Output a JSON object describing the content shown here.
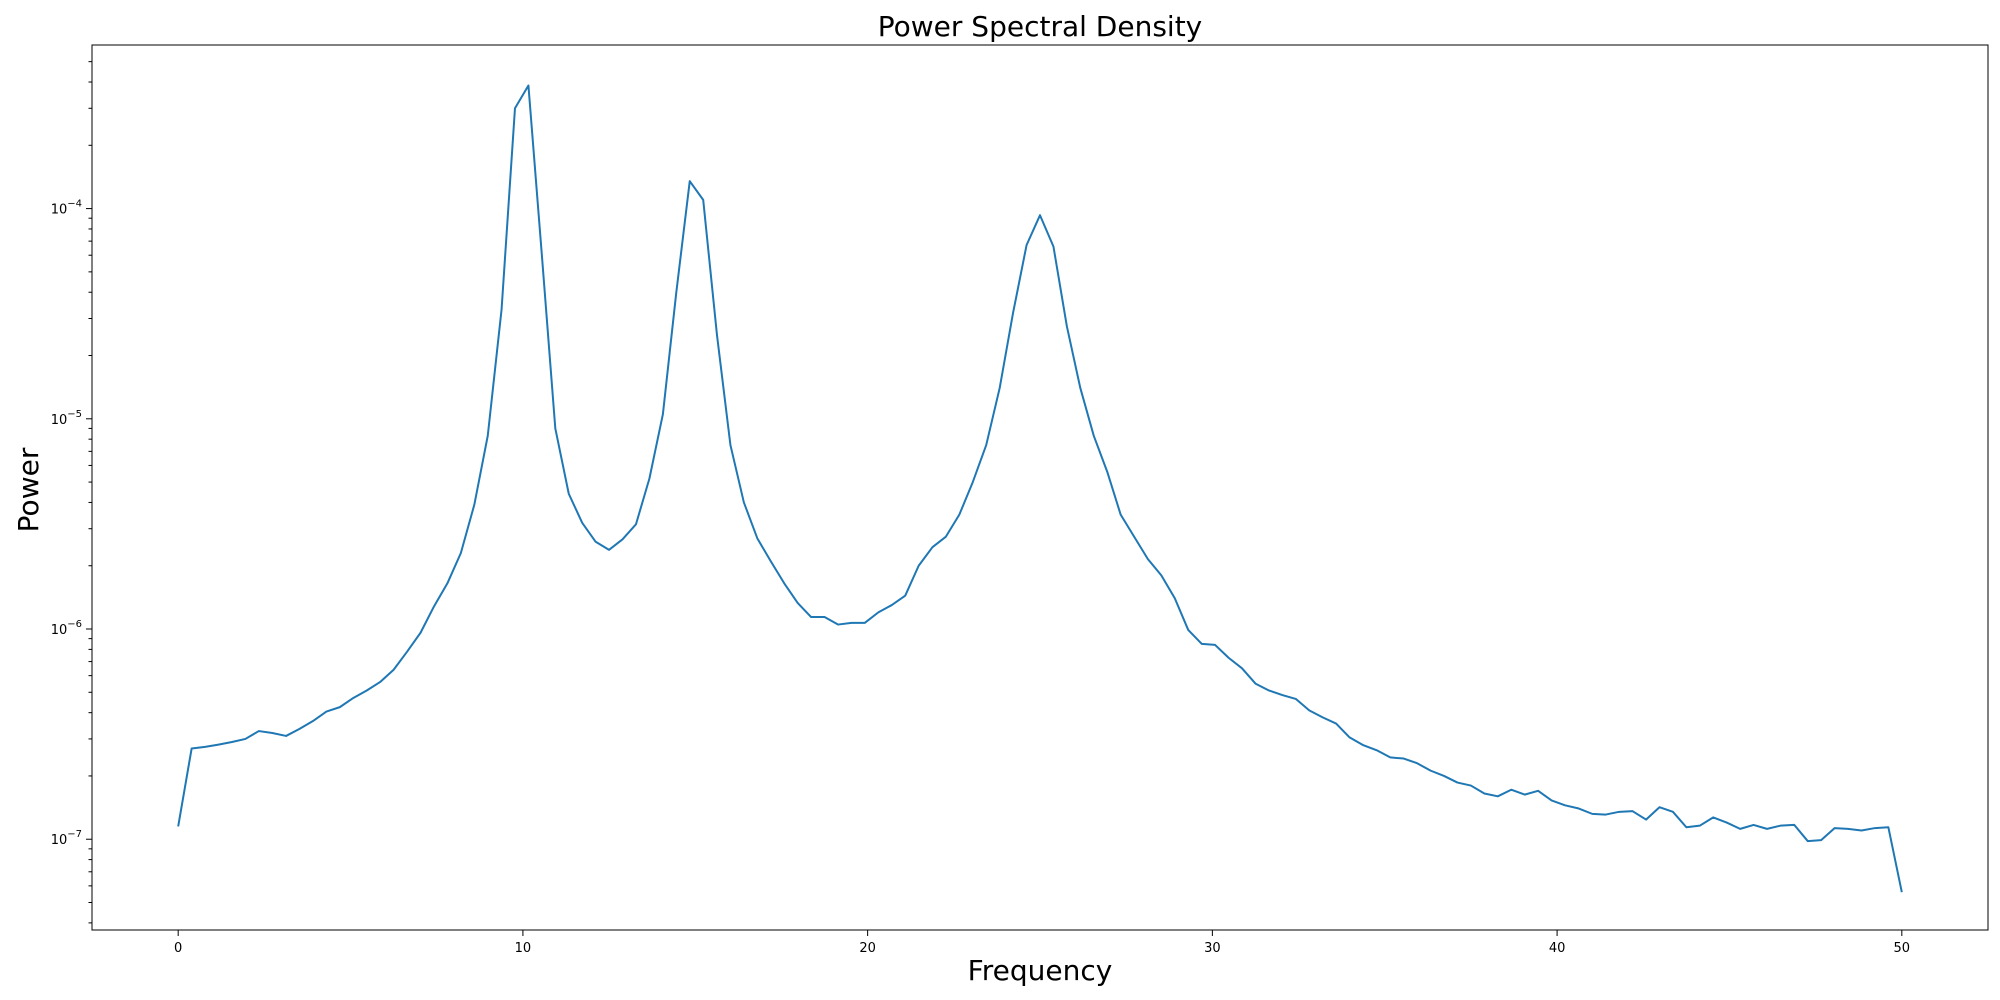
{
  "chart_data": {
    "type": "line",
    "title": "Power Spectral Density",
    "xlabel": "Frequency",
    "ylabel": "Power",
    "yscale": "log",
    "xlim": [
      -2.5,
      52.5
    ],
    "ylim": [
      3.7e-08,
      0.0006
    ],
    "grid": false,
    "line_color": "#1f77b4",
    "x_ticks": [
      0,
      10,
      20,
      30,
      40,
      50
    ],
    "x_tick_labels": [
      "0",
      "10",
      "20",
      "30",
      "40",
      "50"
    ],
    "y_major_ticks": [
      {
        "value": 1e-07,
        "base": "10",
        "exponent": "−7"
      },
      {
        "value": 1e-06,
        "base": "10",
        "exponent": "−6"
      },
      {
        "value": 1e-05,
        "base": "10",
        "exponent": "−5"
      },
      {
        "value": 0.0001,
        "base": "10",
        "exponent": "−4"
      }
    ],
    "series": [
      {
        "x": [
          0,
          0.39,
          0.78,
          1.17,
          1.56,
          1.95,
          2.34,
          2.73,
          3.13,
          3.52,
          3.91,
          4.3,
          4.69,
          5.08,
          5.47,
          5.86,
          6.25,
          6.64,
          7.03,
          7.42,
          7.81,
          8.2,
          8.59,
          8.98,
          9.38,
          9.77,
          10.16,
          10.55,
          10.94,
          11.33,
          11.72,
          12.11,
          12.5,
          12.89,
          13.28,
          13.67,
          14.06,
          14.45,
          14.84,
          15.23,
          15.63,
          16.02,
          16.41,
          16.8,
          17.19,
          17.58,
          17.97,
          18.36,
          18.75,
          19.14,
          19.53,
          19.92,
          20.31,
          20.7,
          21.09,
          21.48,
          21.88,
          22.27,
          22.66,
          23.05,
          23.44,
          23.83,
          24.22,
          24.61,
          25,
          25.39,
          25.78,
          26.17,
          26.56,
          26.95,
          27.34,
          27.73,
          28.13,
          28.52,
          28.91,
          29.3,
          29.69,
          30.08,
          30.47,
          30.86,
          31.25,
          31.64,
          32.03,
          32.42,
          32.81,
          33.2,
          33.59,
          33.98,
          34.38,
          34.77,
          35.16,
          35.55,
          35.94,
          36.33,
          36.72,
          37.11,
          37.5,
          37.89,
          38.28,
          38.67,
          39.06,
          39.45,
          39.84,
          40.23,
          40.63,
          41.02,
          41.41,
          41.8,
          42.19,
          42.58,
          42.97,
          43.36,
          43.75,
          44.14,
          44.53,
          44.92,
          45.31,
          45.7,
          46.09,
          46.48,
          46.88,
          47.27,
          47.66,
          48.05,
          48.44,
          48.83,
          49.22,
          49.61,
          50
        ],
        "y": [
          1.15e-07,
          2.7e-07,
          2.75e-07,
          2.82e-07,
          2.9e-07,
          3e-07,
          3.27e-07,
          3.2e-07,
          3.1e-07,
          3.35e-07,
          3.65e-07,
          4.05e-07,
          4.25e-07,
          4.7e-07,
          5.1e-07,
          5.6e-07,
          6.4e-07,
          7.8e-07,
          9.6e-07,
          1.28e-06,
          1.65e-06,
          2.3e-06,
          3.9e-06,
          8.3e-06,
          3.3e-05,
          0.0003,
          0.000385,
          6e-05,
          9e-06,
          4.4e-06,
          3.2e-06,
          2.6e-06,
          2.38e-06,
          2.67e-06,
          3.15e-06,
          5.2e-06,
          1.05e-05,
          4e-05,
          0.000135,
          0.00011,
          2.5e-05,
          7.5e-06,
          4e-06,
          2.7e-06,
          2.1e-06,
          1.65e-06,
          1.33e-06,
          1.14e-06,
          1.14e-06,
          1.05e-06,
          1.07e-06,
          1.07e-06,
          1.2e-06,
          1.3e-06,
          1.44e-06,
          2e-06,
          2.45e-06,
          2.75e-06,
          3.5e-06,
          5e-06,
          7.5e-06,
          1.4e-05,
          3.2e-05,
          6.7e-05,
          9.3e-05,
          6.6e-05,
          2.75e-05,
          1.4e-05,
          8.3e-06,
          5.6e-06,
          3.5e-06,
          2.75e-06,
          2.15e-06,
          1.8e-06,
          1.4e-06,
          9.9e-07,
          8.5e-07,
          8.4e-07,
          7.3e-07,
          6.5e-07,
          5.5e-07,
          5.1e-07,
          4.85e-07,
          4.65e-07,
          4.1e-07,
          3.8e-07,
          3.55e-07,
          3.05e-07,
          2.8e-07,
          2.65e-07,
          2.45e-07,
          2.42e-07,
          2.3e-07,
          2.12e-07,
          2e-07,
          1.86e-07,
          1.8e-07,
          1.65e-07,
          1.6e-07,
          1.72e-07,
          1.63e-07,
          1.7e-07,
          1.53e-07,
          1.45e-07,
          1.4e-07,
          1.32e-07,
          1.31e-07,
          1.35e-07,
          1.36e-07,
          1.24e-07,
          1.42e-07,
          1.35e-07,
          1.14e-07,
          1.16e-07,
          1.27e-07,
          1.2e-07,
          1.12e-07,
          1.17e-07,
          1.12e-07,
          1.16e-07,
          1.17e-07,
          9.8e-08,
          9.9e-08,
          1.13e-07,
          1.12e-07,
          1.1e-07,
          1.13e-07,
          1.14e-07,
          5.6e-08
        ]
      }
    ]
  }
}
